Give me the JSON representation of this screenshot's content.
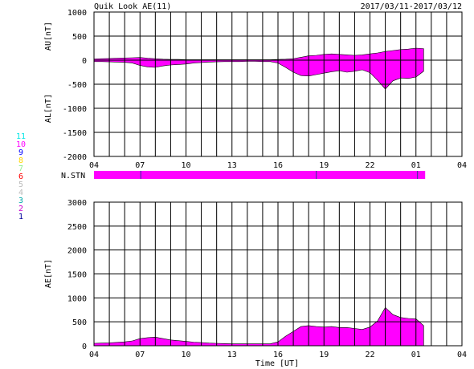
{
  "header": {
    "title": "Quik Look AE(11)",
    "date_range": "2017/03/11-2017/03/12"
  },
  "stations": {
    "label": "N.STN",
    "fill_color": "#ff00ff",
    "bar_end_hour": 25.6,
    "breaks_hours": [
      7.05,
      18.5,
      25.1
    ],
    "legend": [
      {
        "text": "11",
        "color": "#00e5e5"
      },
      {
        "text": "10",
        "color": "#ff00ff"
      },
      {
        "text": "9",
        "color": "#0000ff"
      },
      {
        "text": "8",
        "color": "#ffd700"
      },
      {
        "text": "7",
        "color": "#90ee90"
      },
      {
        "text": "6",
        "color": "#ff0000"
      },
      {
        "text": "5",
        "color": "#bbbbbb"
      },
      {
        "text": "4",
        "color": "#bbbbbb"
      },
      {
        "text": "3",
        "color": "#00aaaa"
      },
      {
        "text": "2",
        "color": "#cc00cc"
      },
      {
        "text": "1",
        "color": "#000099"
      }
    ]
  },
  "chart_data": [
    {
      "type": "area",
      "panel": "AU/AL",
      "ylabel_upper": "AU[nT]",
      "ylabel_lower": "AL[nT]",
      "xlim_hours": [
        4,
        28
      ],
      "x_tick_hours": [
        4,
        7,
        10,
        13,
        16,
        19,
        22,
        25,
        28
      ],
      "x_tick_labels": [
        "04",
        "07",
        "10",
        "13",
        "16",
        "19",
        "22",
        "01",
        "04"
      ],
      "ylim": [
        -2000,
        1000
      ],
      "y_ticks": [
        -2000,
        -1500,
        -1000,
        -500,
        0,
        500,
        1000
      ],
      "fill_color": "#ff00ff",
      "grid": true,
      "x_hours": [
        4,
        4.5,
        5,
        5.5,
        6,
        6.5,
        7,
        7.5,
        8,
        8.5,
        9,
        9.5,
        10,
        10.5,
        11,
        11.5,
        12,
        12.5,
        13,
        13.5,
        14,
        14.5,
        15,
        15.5,
        16,
        16.5,
        17,
        17.5,
        18,
        18.5,
        19,
        19.5,
        20,
        20.5,
        21,
        21.5,
        22,
        22.5,
        23,
        23.5,
        24,
        24.5,
        25,
        25.5
      ],
      "au_values": [
        25,
        30,
        35,
        40,
        45,
        50,
        55,
        40,
        30,
        20,
        15,
        15,
        10,
        10,
        10,
        10,
        10,
        10,
        10,
        10,
        10,
        10,
        10,
        10,
        15,
        20,
        30,
        60,
        90,
        100,
        120,
        130,
        120,
        110,
        100,
        110,
        130,
        150,
        180,
        200,
        220,
        230,
        250,
        240
      ],
      "al_values": [
        -30,
        -30,
        -35,
        -40,
        -45,
        -60,
        -110,
        -140,
        -150,
        -120,
        -100,
        -90,
        -80,
        -60,
        -50,
        -40,
        -35,
        -30,
        -30,
        -30,
        -25,
        -25,
        -30,
        -30,
        -60,
        -150,
        -250,
        -320,
        -330,
        -300,
        -270,
        -240,
        -220,
        -250,
        -230,
        -200,
        -260,
        -420,
        -600,
        -430,
        -370,
        -380,
        -350,
        -230
      ]
    },
    {
      "type": "area",
      "panel": "AE",
      "ylabel": "AE[nT]",
      "xlabel": "Time [UT]",
      "xlim_hours": [
        4,
        28
      ],
      "x_tick_hours": [
        4,
        7,
        10,
        13,
        16,
        19,
        22,
        25,
        28
      ],
      "x_tick_labels": [
        "04",
        "07",
        "10",
        "13",
        "16",
        "19",
        "22",
        "01",
        "04"
      ],
      "ylim": [
        0,
        3000
      ],
      "y_ticks": [
        0,
        500,
        1000,
        1500,
        2000,
        2500,
        3000
      ],
      "fill_color": "#ff00ff",
      "grid": true,
      "x_hours": [
        4,
        4.5,
        5,
        5.5,
        6,
        6.5,
        7,
        7.5,
        8,
        8.5,
        9,
        9.5,
        10,
        10.5,
        11,
        11.5,
        12,
        12.5,
        13,
        13.5,
        14,
        14.5,
        15,
        15.5,
        16,
        16.5,
        17,
        17.5,
        18,
        18.5,
        19,
        19.5,
        20,
        20.5,
        21,
        21.5,
        22,
        22.5,
        23,
        23.5,
        24,
        24.5,
        25,
        25.5
      ],
      "ae_values": [
        50,
        55,
        60,
        70,
        80,
        100,
        150,
        170,
        180,
        150,
        120,
        105,
        90,
        75,
        65,
        55,
        50,
        45,
        40,
        40,
        40,
        40,
        40,
        40,
        80,
        200,
        300,
        400,
        420,
        400,
        390,
        400,
        380,
        380,
        360,
        340,
        390,
        520,
        800,
        650,
        590,
        570,
        560,
        420
      ]
    }
  ]
}
